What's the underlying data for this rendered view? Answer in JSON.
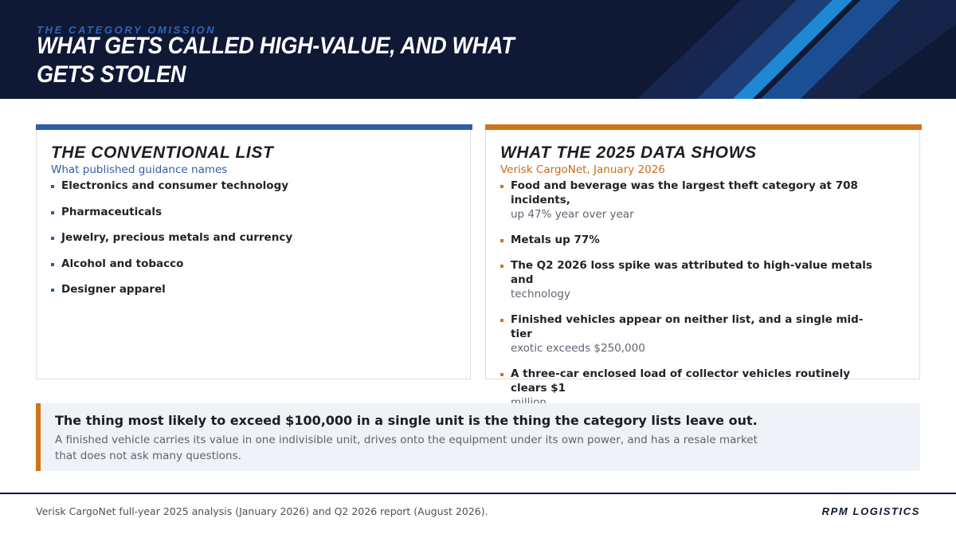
{
  "header": {
    "eyebrow": "THE CATEGORY OMISSION",
    "title": "WHAT GETS CALLED HIGH-VALUE, AND WHAT GETS STOLEN"
  },
  "colors": {
    "navy": "#0f1834",
    "blue": "#2f5ea8",
    "orange": "#d0741a",
    "stripe_light": "#1e88d2"
  },
  "left_card": {
    "title": "THE CONVENTIONAL LIST",
    "subtitle": "What published guidance names",
    "items": [
      "Electronics and consumer technology",
      "Pharmaceuticals",
      "Jewelry, precious metals and currency",
      "Alcohol and tobacco",
      "Designer apparel"
    ]
  },
  "right_card": {
    "title": "WHAT THE 2025 DATA SHOWS",
    "subtitle": "Verisk CargoNet, January 2026",
    "items": [
      {
        "main": "Food and beverage was the largest theft category at 708 incidents,",
        "detail": "up 47% year over year"
      },
      {
        "main": "Metals up 77%",
        "detail": ""
      },
      {
        "main": "The Q2 2026 loss spike was attributed to high-value metals and",
        "detail": "technology"
      },
      {
        "main": "Finished vehicles appear on neither list, and a single mid-tier",
        "detail": "exotic exceeds $250,000"
      },
      {
        "main": "A three-car enclosed load of collector vehicles routinely clears $1",
        "detail": "million"
      }
    ]
  },
  "callout": {
    "headline": "The thing most likely to exceed $100,000 in a single unit is the thing the category lists leave out.",
    "body": "A finished vehicle carries its value in one indivisible unit, drives onto the equipment under its own power, and has a resale market that does not ask many questions."
  },
  "footer": {
    "source": "Verisk CargoNet full-year 2025 analysis (January 2026) and Q2 2026 report (August 2026).",
    "brand": "RPM LOGISTICS"
  }
}
